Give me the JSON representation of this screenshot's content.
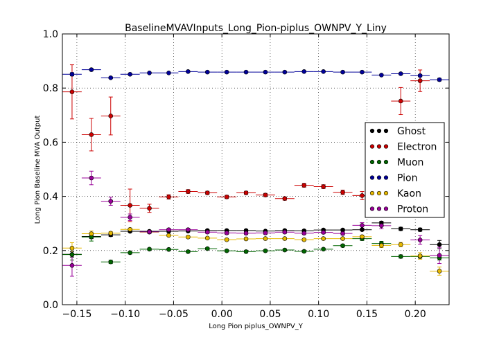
{
  "chart_data": {
    "type": "scatter",
    "title": "BaselineMVAVInputs_Long_Pion-piplus_OWNPV_Y_Liny",
    "xlabel": "Long Pion piplus_OWNPV_Y",
    "ylabel": "Long Pion Baseline MVA Output",
    "xlim": [
      -0.165,
      0.235
    ],
    "ylim": [
      0.0,
      1.0
    ],
    "xticks": [
      -0.15,
      -0.1,
      -0.05,
      0.0,
      0.05,
      0.1,
      0.15,
      0.2
    ],
    "xtick_labels": [
      "−0.15",
      "−0.10",
      "−0.05",
      "0.00",
      "0.05",
      "0.10",
      "0.15",
      "0.20"
    ],
    "yticks": [
      0.0,
      0.2,
      0.4,
      0.6,
      0.8,
      1.0
    ],
    "ytick_labels": [
      "0.0",
      "0.2",
      "0.4",
      "0.6",
      "0.8",
      "1.0"
    ],
    "grid": true,
    "legend_position": "right",
    "bin_half_width": 0.01,
    "x": [
      -0.155,
      -0.135,
      -0.115,
      -0.095,
      -0.075,
      -0.055,
      -0.035,
      -0.015,
      0.005,
      0.025,
      0.045,
      0.065,
      0.085,
      0.105,
      0.125,
      0.145,
      0.165,
      0.185,
      0.205,
      0.225
    ],
    "series": [
      {
        "name": "Ghost",
        "color": "#000000",
        "y": [
          0.186,
          0.252,
          0.258,
          0.271,
          0.271,
          0.271,
          0.272,
          0.274,
          0.274,
          0.274,
          0.272,
          0.274,
          0.273,
          0.276,
          0.276,
          0.277,
          0.302,
          0.28,
          0.277,
          0.222
        ],
        "err": [
          0.01,
          0.008,
          0.006,
          0.004,
          0.004,
          0.004,
          0.003,
          0.003,
          0.003,
          0.003,
          0.003,
          0.003,
          0.003,
          0.003,
          0.003,
          0.004,
          0.006,
          0.006,
          0.006,
          0.015
        ]
      },
      {
        "name": "Electron",
        "color": "#cc0000",
        "y": [
          0.786,
          0.628,
          0.697,
          0.367,
          0.356,
          0.398,
          0.418,
          0.413,
          0.398,
          0.413,
          0.405,
          0.392,
          0.441,
          0.436,
          0.415,
          0.403,
          null,
          0.752,
          0.827,
          null
        ],
        "err": [
          0.1,
          0.06,
          0.07,
          0.06,
          0.015,
          0.008,
          0.007,
          0.006,
          0.006,
          0.006,
          0.006,
          0.006,
          0.007,
          0.007,
          0.008,
          0.015,
          null,
          0.05,
          0.04,
          null
        ]
      },
      {
        "name": "Muon",
        "color": "#006600",
        "y": [
          0.185,
          0.25,
          0.158,
          0.192,
          0.205,
          0.204,
          0.196,
          0.207,
          0.199,
          0.196,
          0.199,
          0.202,
          0.197,
          0.205,
          0.218,
          0.244,
          0.226,
          0.178,
          0.178,
          0.173
        ],
        "err": [
          0.02,
          0.015,
          0.006,
          0.005,
          0.004,
          0.004,
          0.004,
          0.004,
          0.004,
          0.004,
          0.004,
          0.004,
          0.004,
          0.004,
          0.005,
          0.007,
          0.008,
          0.006,
          0.006,
          0.008
        ]
      },
      {
        "name": "Pion",
        "color": "#000099",
        "y": [
          0.851,
          0.868,
          0.838,
          0.851,
          0.856,
          0.856,
          0.861,
          0.859,
          0.859,
          0.859,
          0.859,
          0.859,
          0.861,
          0.861,
          0.859,
          0.859,
          0.848,
          0.853,
          0.846,
          0.831
        ],
        "err": [
          0.006,
          0.004,
          0.003,
          0.002,
          0.002,
          0.002,
          0.002,
          0.002,
          0.002,
          0.002,
          0.002,
          0.002,
          0.002,
          0.002,
          0.002,
          0.002,
          0.003,
          0.003,
          0.004,
          0.005
        ]
      },
      {
        "name": "Kaon",
        "color": "#e6b800",
        "y": [
          0.209,
          0.262,
          0.264,
          0.278,
          0.268,
          0.256,
          0.25,
          0.246,
          0.24,
          0.243,
          0.244,
          0.244,
          0.24,
          0.244,
          0.244,
          0.251,
          0.219,
          0.222,
          0.18,
          0.124
        ],
        "err": [
          0.02,
          0.01,
          0.006,
          0.005,
          0.004,
          0.004,
          0.004,
          0.004,
          0.004,
          0.004,
          0.004,
          0.004,
          0.004,
          0.004,
          0.004,
          0.006,
          0.008,
          0.008,
          0.012,
          0.015
        ]
      },
      {
        "name": "Proton",
        "color": "#990099",
        "y": [
          0.145,
          0.468,
          0.382,
          0.323,
          0.269,
          0.277,
          0.277,
          0.268,
          0.265,
          0.264,
          0.265,
          0.268,
          0.264,
          0.267,
          0.263,
          0.293,
          0.292,
          null,
          0.239,
          0.182
        ],
        "err": [
          0.04,
          0.025,
          0.015,
          0.012,
          0.006,
          0.005,
          0.005,
          0.005,
          0.005,
          0.005,
          0.005,
          0.005,
          0.005,
          0.005,
          0.006,
          0.01,
          0.012,
          null,
          0.016,
          0.03
        ]
      }
    ]
  }
}
